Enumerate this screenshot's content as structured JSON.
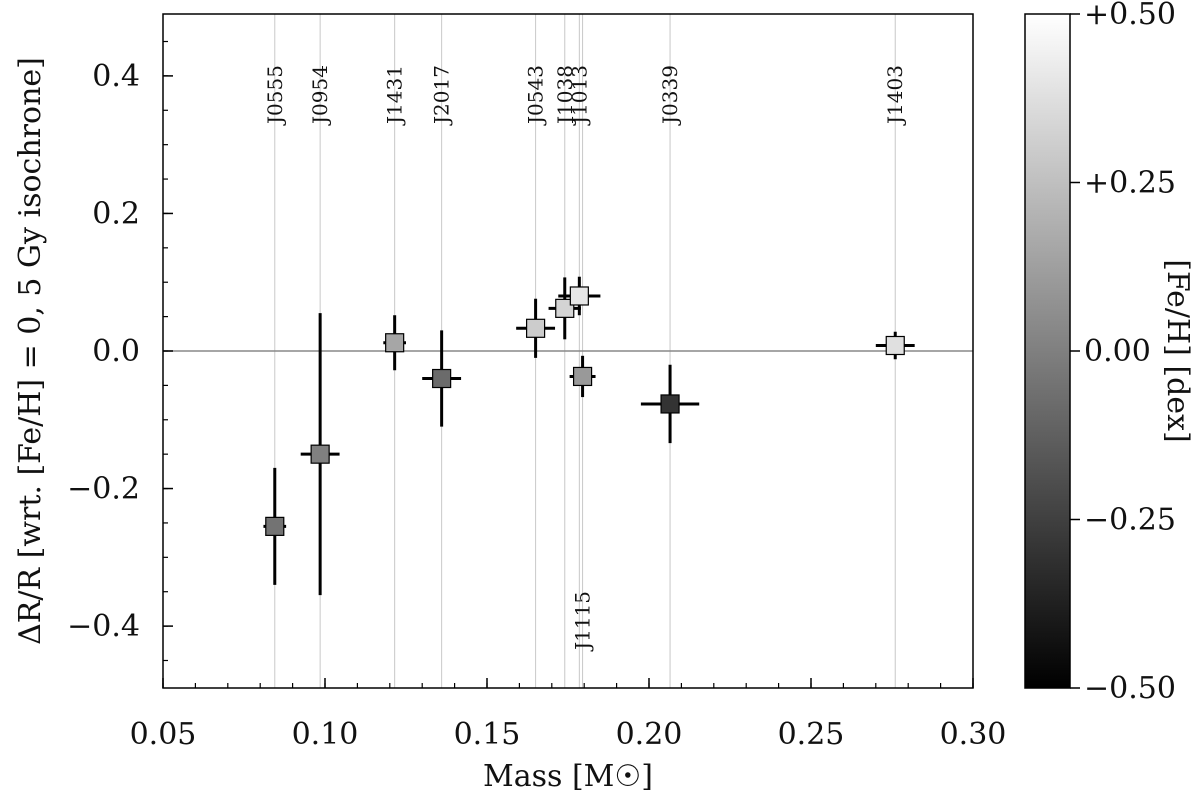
{
  "chart_data": {
    "type": "scatter",
    "title": "",
    "xlabel": "Mass [M☉]",
    "ylabel": "ΔR/R [wrt. [Fe/H] = 0, 5 Gy isochrone]",
    "xlim": [
      0.05,
      0.3
    ],
    "ylim": [
      -0.49,
      0.49
    ],
    "x_ticks": [
      "0.05",
      "0.10",
      "0.15",
      "0.20",
      "0.25",
      "0.30"
    ],
    "y_ticks": [
      "−0.4",
      "−0.2",
      "0.0",
      "0.2",
      "0.4"
    ],
    "grid": false,
    "reference_line_y": 0,
    "colorbar": {
      "label": "[Fe/H] [dex]",
      "range": [
        -0.5,
        0.5
      ],
      "ticks": [
        "−0.50",
        "−0.25",
        "0.00",
        "+0.25",
        "+0.50"
      ],
      "colormap": "grayscale"
    },
    "points": [
      {
        "label": "J0555",
        "mass": 0.0845,
        "mass_err": 0.0035,
        "dr": -0.255,
        "dr_err": 0.085,
        "feh": -0.05
      },
      {
        "label": "J0954",
        "mass": 0.0985,
        "mass_err": 0.006,
        "dr": -0.15,
        "dr_err": 0.205,
        "feh": 0.0
      },
      {
        "label": "J1431",
        "mass": 0.1215,
        "mass_err": 0.0035,
        "dr": 0.012,
        "dr_err": 0.04,
        "feh": 0.15
      },
      {
        "label": "J2017",
        "mass": 0.136,
        "mass_err": 0.006,
        "dr": -0.04,
        "dr_err": 0.07,
        "feh": -0.08
      },
      {
        "label": "J0543",
        "mass": 0.165,
        "mass_err": 0.006,
        "dr": 0.033,
        "dr_err": 0.043,
        "feh": 0.3
      },
      {
        "label": "J1038",
        "mass": 0.174,
        "mass_err": 0.005,
        "dr": 0.062,
        "dr_err": 0.045,
        "feh": 0.33
      },
      {
        "label": "J1013",
        "mass": 0.1785,
        "mass_err": 0.0065,
        "dr": 0.08,
        "dr_err": 0.028,
        "feh": 0.4
      },
      {
        "label": "J1115",
        "mass": 0.1795,
        "mass_err": 0.004,
        "dr": -0.037,
        "dr_err": 0.03,
        "feh": 0.1
      },
      {
        "label": "J0339",
        "mass": 0.2065,
        "mass_err": 0.009,
        "dr": -0.077,
        "dr_err": 0.057,
        "feh": -0.3
      },
      {
        "label": "J1403",
        "mass": 0.276,
        "mass_err": 0.006,
        "dr": 0.008,
        "dr_err": 0.02,
        "feh": 0.38
      }
    ],
    "label_placement": {
      "J1115": "bottom"
    }
  }
}
